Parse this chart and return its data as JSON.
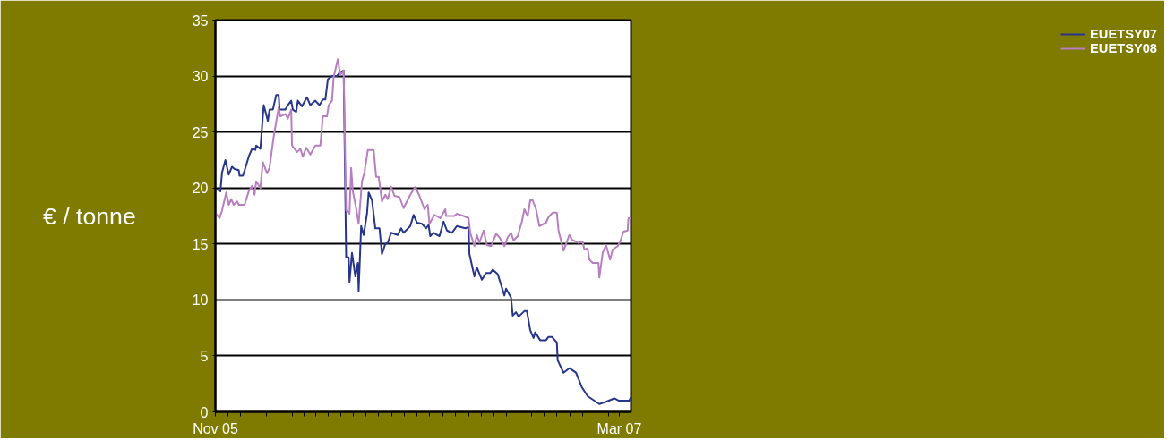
{
  "chart_data": {
    "type": "line",
    "ylabel": "€ / tonne",
    "ylim": [
      0,
      35
    ],
    "yticks": [
      0,
      5,
      10,
      15,
      20,
      25,
      30,
      35
    ],
    "xlim": [
      "2005-11-01",
      "2007-03-15"
    ],
    "xticks": [
      {
        "value": "2005-11-01",
        "label": "Nov 05"
      },
      {
        "value": "2005-11-16",
        "label": null
      },
      {
        "value": "2005-12-01",
        "label": null
      },
      {
        "value": "2005-12-16",
        "label": null
      },
      {
        "value": "2006-01-01",
        "label": null
      },
      {
        "value": "2006-01-16",
        "label": null
      },
      {
        "value": "2006-02-01",
        "label": null
      },
      {
        "value": "2006-02-16",
        "label": null
      },
      {
        "value": "2006-03-01",
        "label": null
      },
      {
        "value": "2006-03-16",
        "label": null
      },
      {
        "value": "2006-04-01",
        "label": null
      },
      {
        "value": "2006-04-16",
        "label": null
      },
      {
        "value": "2006-05-01",
        "label": null
      },
      {
        "value": "2006-05-16",
        "label": null
      },
      {
        "value": "2006-06-01",
        "label": null
      },
      {
        "value": "2006-06-16",
        "label": null
      },
      {
        "value": "2006-07-01",
        "label": null
      },
      {
        "value": "2006-07-16",
        "label": null
      },
      {
        "value": "2006-08-01",
        "label": null
      },
      {
        "value": "2006-08-16",
        "label": null
      },
      {
        "value": "2006-09-01",
        "label": null
      },
      {
        "value": "2006-09-16",
        "label": null
      },
      {
        "value": "2006-10-01",
        "label": null
      },
      {
        "value": "2006-10-16",
        "label": null
      },
      {
        "value": "2006-11-01",
        "label": null
      },
      {
        "value": "2006-11-16",
        "label": null
      },
      {
        "value": "2006-12-01",
        "label": null
      },
      {
        "value": "2006-12-16",
        "label": null
      },
      {
        "value": "2007-01-01",
        "label": null
      },
      {
        "value": "2007-01-16",
        "label": null
      },
      {
        "value": "2007-02-01",
        "label": null
      },
      {
        "value": "2007-02-16",
        "label": null
      },
      {
        "value": "2007-03-01",
        "label": "Mar 07"
      }
    ],
    "grid": "y",
    "legend": "right",
    "marker": "none",
    "line_style": "solid",
    "series": [
      {
        "name": "EUETSY07",
        "color": "#27358a",
        "x": [
          "2005-11-02",
          "2005-11-07",
          "2005-11-09",
          "2005-11-13",
          "2005-11-17",
          "2005-11-21",
          "2005-11-24",
          "2005-11-29",
          "2005-11-30",
          "2005-12-04",
          "2005-12-07",
          "2005-12-11",
          "2005-12-15",
          "2005-12-19",
          "2005-12-20",
          "2005-12-25",
          "2005-12-29",
          "2006-01-03",
          "2006-01-05",
          "2006-01-09",
          "2006-01-13",
          "2006-01-16",
          "2006-01-17",
          "2006-01-24",
          "2006-01-27",
          "2006-01-31",
          "2006-02-02",
          "2006-02-06",
          "2006-02-08",
          "2006-02-13",
          "2006-02-19",
          "2006-02-23",
          "2006-03-01",
          "2006-03-06",
          "2006-03-10",
          "2006-03-13",
          "2006-03-16",
          "2006-03-21",
          "2006-03-27",
          "2006-03-30",
          "2006-04-04",
          "2006-04-07",
          "2006-04-10",
          "2006-04-11",
          "2006-04-14",
          "2006-04-18",
          "2006-04-21",
          "2006-04-22",
          "2006-04-25",
          "2006-04-28",
          "2006-05-02",
          "2006-05-04",
          "2006-05-08",
          "2006-05-12",
          "2006-05-17",
          "2006-05-20",
          "2006-05-24",
          "2006-05-27",
          "2006-05-31",
          "2006-06-08",
          "2006-06-12",
          "2006-06-15",
          "2006-06-23",
          "2006-06-27",
          "2006-07-01",
          "2006-07-07",
          "2006-07-12",
          "2006-07-15",
          "2006-07-17",
          "2006-07-21",
          "2006-07-28",
          "2006-08-02",
          "2006-08-06",
          "2006-08-12",
          "2006-08-18",
          "2006-08-28",
          "2006-09-01",
          "2006-09-02",
          "2006-09-08",
          "2006-09-11",
          "2006-09-17",
          "2006-09-22",
          "2006-09-27",
          "2006-09-30",
          "2006-10-06",
          "2006-10-14",
          "2006-10-16",
          "2006-10-22",
          "2006-10-24",
          "2006-10-28",
          "2006-10-31",
          "2006-11-07",
          "2006-11-10",
          "2006-11-14",
          "2006-11-18",
          "2006-11-20",
          "2006-11-26",
          "2006-12-03",
          "2006-12-06",
          "2006-12-10",
          "2006-12-16",
          "2006-12-17",
          "2006-12-24",
          "2006-12-31",
          "2007-01-08",
          "2007-01-15",
          "2007-01-22",
          "2007-01-30",
          "2007-02-05",
          "2007-02-13",
          "2007-02-23",
          "2007-02-28",
          "2007-03-13",
          "2007-03-15"
        ],
        "values": [
          19.9,
          19.7,
          21.4,
          22.5,
          21.2,
          21.9,
          21.7,
          21.6,
          21.1,
          21.1,
          21.8,
          22.8,
          23.5,
          23.4,
          23.8,
          23.5,
          27.4,
          26.0,
          27.0,
          27.0,
          28.3,
          28.3,
          27.0,
          27.0,
          27.4,
          27.8,
          27.0,
          26.8,
          27.8,
          27.3,
          28.1,
          27.4,
          27.8,
          27.4,
          27.9,
          27.9,
          29.7,
          30.0,
          30.0,
          30.3,
          30.5,
          13.8,
          13.8,
          11.6,
          14.2,
          12.1,
          13.3,
          10.8,
          16.6,
          15.8,
          17.7,
          19.6,
          18.9,
          16.4,
          16.4,
          14.1,
          15.0,
          15.1,
          16.0,
          15.8,
          16.4,
          16.0,
          16.6,
          17.6,
          16.9,
          16.8,
          16.4,
          16.7,
          15.7,
          16.0,
          15.7,
          17.0,
          16.2,
          16.0,
          16.6,
          16.4,
          16.5,
          14.1,
          12.1,
          12.9,
          11.8,
          12.4,
          12.4,
          12.7,
          12.3,
          10.4,
          11.0,
          10.2,
          8.6,
          8.9,
          8.5,
          9.0,
          9.0,
          7.3,
          6.6,
          7.1,
          6.4,
          6.4,
          6.7,
          6.7,
          6.2,
          4.6,
          3.5,
          3.9,
          3.5,
          2.2,
          1.4,
          1.0,
          0.7,
          0.9,
          1.2,
          1.0,
          1.0,
          1.3
        ]
      },
      {
        "name": "EUETSY08",
        "color": "#b77fc0",
        "x": [
          "2005-11-02",
          "2005-11-06",
          "2005-11-09",
          "2005-11-14",
          "2005-11-17",
          "2005-11-20",
          "2005-11-23",
          "2005-11-27",
          "2005-11-29",
          "2005-12-06",
          "2005-12-11",
          "2005-12-15",
          "2005-12-18",
          "2005-12-20",
          "2005-12-25",
          "2005-12-28",
          "2006-01-02",
          "2006-01-05",
          "2006-01-10",
          "2006-01-16",
          "2006-01-18",
          "2006-01-24",
          "2006-01-27",
          "2006-01-31",
          "2006-02-01",
          "2006-02-07",
          "2006-02-11",
          "2006-02-14",
          "2006-02-18",
          "2006-02-23",
          "2006-03-01",
          "2006-03-07",
          "2006-03-10",
          "2006-03-15",
          "2006-03-17",
          "2006-03-21",
          "2006-03-23",
          "2006-03-28",
          "2006-03-31",
          "2006-04-04",
          "2006-04-07",
          "2006-04-11",
          "2006-04-13",
          "2006-04-15",
          "2006-04-19",
          "2006-04-22",
          "2006-04-26",
          "2006-04-29",
          "2006-05-03",
          "2006-05-10",
          "2006-05-13",
          "2006-05-16",
          "2006-05-20",
          "2006-05-24",
          "2006-05-27",
          "2006-05-31",
          "2006-06-04",
          "2006-06-10",
          "2006-06-15",
          "2006-06-23",
          "2006-06-29",
          "2006-07-04",
          "2006-07-10",
          "2006-07-14",
          "2006-07-16",
          "2006-07-22",
          "2006-07-29",
          "2006-08-04",
          "2006-08-05",
          "2006-08-15",
          "2006-08-18",
          "2006-08-26",
          "2006-09-01",
          "2006-09-03",
          "2006-09-08",
          "2006-09-11",
          "2006-09-14",
          "2006-09-19",
          "2006-09-23",
          "2006-09-28",
          "2006-10-04",
          "2006-10-08",
          "2006-10-14",
          "2006-10-18",
          "2006-10-22",
          "2006-10-25",
          "2006-10-30",
          "2006-11-04",
          "2006-11-07",
          "2006-11-11",
          "2006-11-14",
          "2006-11-17",
          "2006-11-21",
          "2006-11-25",
          "2006-12-03",
          "2006-12-06",
          "2006-12-11",
          "2006-12-16",
          "2006-12-18",
          "2006-12-24",
          "2006-12-31",
          "2007-01-03",
          "2007-01-11",
          "2007-01-16",
          "2007-01-18",
          "2007-01-22",
          "2007-01-24",
          "2007-01-28",
          "2007-02-04",
          "2007-02-05",
          "2007-02-09",
          "2007-02-13",
          "2007-02-18",
          "2007-02-21",
          "2007-02-27",
          "2007-03-02",
          "2007-03-06",
          "2007-03-11",
          "2007-03-12",
          "2007-03-15"
        ],
        "values": [
          17.7,
          17.3,
          18.0,
          19.6,
          18.5,
          19.0,
          18.5,
          18.8,
          18.5,
          18.5,
          19.7,
          20.2,
          19.4,
          20.6,
          20.0,
          22.3,
          21.3,
          21.8,
          24.6,
          27.2,
          26.4,
          26.6,
          26.2,
          27.0,
          23.8,
          23.2,
          23.5,
          22.8,
          23.6,
          23.0,
          23.8,
          23.8,
          26.4,
          26.4,
          27.4,
          27.8,
          29.9,
          31.5,
          30.1,
          30.5,
          18.0,
          17.7,
          21.8,
          19.7,
          18.2,
          16.8,
          20.6,
          21.4,
          23.4,
          23.4,
          21.0,
          21.0,
          18.8,
          19.4,
          19.0,
          20.1,
          19.3,
          19.2,
          18.2,
          19.4,
          20.1,
          19.3,
          18.1,
          18.5,
          16.8,
          17.6,
          17.3,
          18.1,
          17.5,
          17.5,
          17.7,
          17.5,
          17.3,
          16.0,
          14.8,
          15.8,
          15.1,
          16.2,
          14.9,
          14.8,
          15.9,
          15.6,
          14.8,
          15.6,
          16.0,
          15.3,
          15.7,
          17.0,
          18.1,
          17.5,
          18.9,
          18.9,
          18.1,
          16.6,
          16.9,
          17.4,
          17.8,
          17.8,
          16.2,
          14.4,
          15.8,
          15.4,
          15.1,
          15.2,
          14.5,
          14.6,
          13.6,
          13.3,
          13.3,
          12.0,
          14.2,
          14.9,
          13.6,
          14.5,
          14.8,
          15.2,
          16.1,
          16.2,
          17.3,
          17.3
        ]
      }
    ]
  }
}
